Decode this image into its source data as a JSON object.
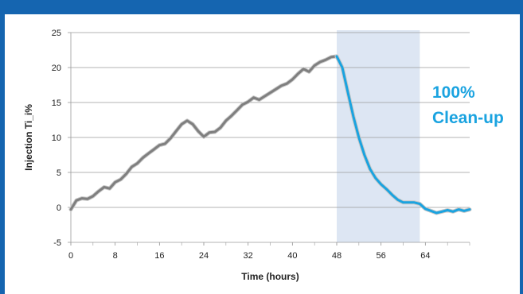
{
  "chart_data": {
    "type": "line",
    "title": "",
    "xlabel": "Time (hours)",
    "ylabel": "Injection Ti_i%",
    "xlim": [
      0,
      72
    ],
    "ylim": [
      -5,
      25
    ],
    "x_ticks": [
      "0",
      "8",
      "16",
      "24",
      "32",
      "40",
      "48",
      "56",
      "64"
    ],
    "y_ticks": [
      "-5",
      "0",
      "5",
      "10",
      "15",
      "20",
      "25"
    ],
    "grid": "horizontal",
    "shaded_region": {
      "x": [
        48,
        63
      ]
    },
    "annotation": {
      "line1": "100%",
      "line2": "Clean-up"
    },
    "colors": {
      "frame": "#1565b0",
      "before": "#7f7f7f",
      "after": "#1aa3e0",
      "shade": "#dde6f3"
    },
    "series": [
      {
        "x": [
          0,
          1,
          2,
          3,
          4,
          5,
          6,
          7,
          8,
          9,
          10,
          11,
          12,
          13,
          14,
          15,
          16,
          17,
          18,
          19,
          20,
          21,
          22,
          23,
          24,
          25,
          26,
          27,
          28,
          29,
          30,
          31,
          32,
          33,
          34,
          35,
          36,
          37,
          38,
          39,
          40,
          41,
          42,
          43,
          44,
          45,
          46,
          47,
          48,
          49,
          50,
          51,
          52,
          53,
          54,
          55,
          56,
          57,
          58,
          59,
          60,
          61,
          62,
          63,
          64,
          65,
          66,
          67,
          68,
          69,
          70,
          71,
          72
        ],
        "values": [
          -0.3,
          1.0,
          1.3,
          1.2,
          1.6,
          2.3,
          2.9,
          2.7,
          3.6,
          4.0,
          4.8,
          5.8,
          6.3,
          7.1,
          7.7,
          8.3,
          8.9,
          9.1,
          9.9,
          10.9,
          11.9,
          12.4,
          11.9,
          10.9,
          10.1,
          10.7,
          10.8,
          11.4,
          12.4,
          13.1,
          13.9,
          14.7,
          15.1,
          15.7,
          15.4,
          15.9,
          16.4,
          16.9,
          17.4,
          17.7,
          18.3,
          19.1,
          19.8,
          19.4,
          20.3,
          20.8,
          21.1,
          21.5,
          21.6,
          20.0,
          16.5,
          13.0,
          10.0,
          7.5,
          5.5,
          4.2,
          3.3,
          2.6,
          1.8,
          1.1,
          0.7,
          0.7,
          0.7,
          0.5,
          -0.2,
          -0.5,
          -0.8,
          -0.6,
          -0.4,
          -0.6,
          -0.3,
          -0.5,
          -0.3
        ]
      }
    ]
  }
}
